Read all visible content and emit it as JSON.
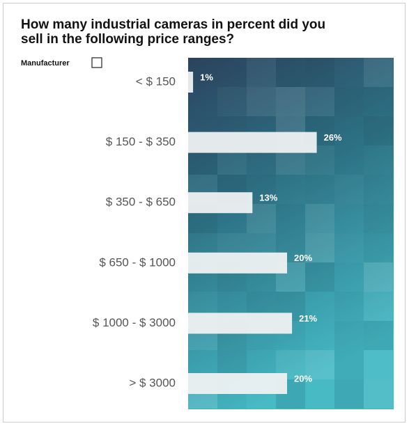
{
  "chart_data": {
    "type": "hbar",
    "title": [
      "How many industrial cameras in percent did you",
      "sell in the following price ranges?"
    ],
    "categories": [
      "< $ 150",
      "$ 150 - $ 350",
      "$ 350 - $ 650",
      "$ 650 - $ 1000",
      "$ 1000 - $ 3000",
      "> $ 3000"
    ],
    "series": [
      {
        "name": "Manufacturer",
        "color": "#eef1f2",
        "values": [
          1,
          26,
          13,
          20,
          21,
          20
        ],
        "value_labels": [
          "1%",
          "26%",
          "13%",
          "20%",
          "21%",
          "20%"
        ]
      }
    ]
  }
}
